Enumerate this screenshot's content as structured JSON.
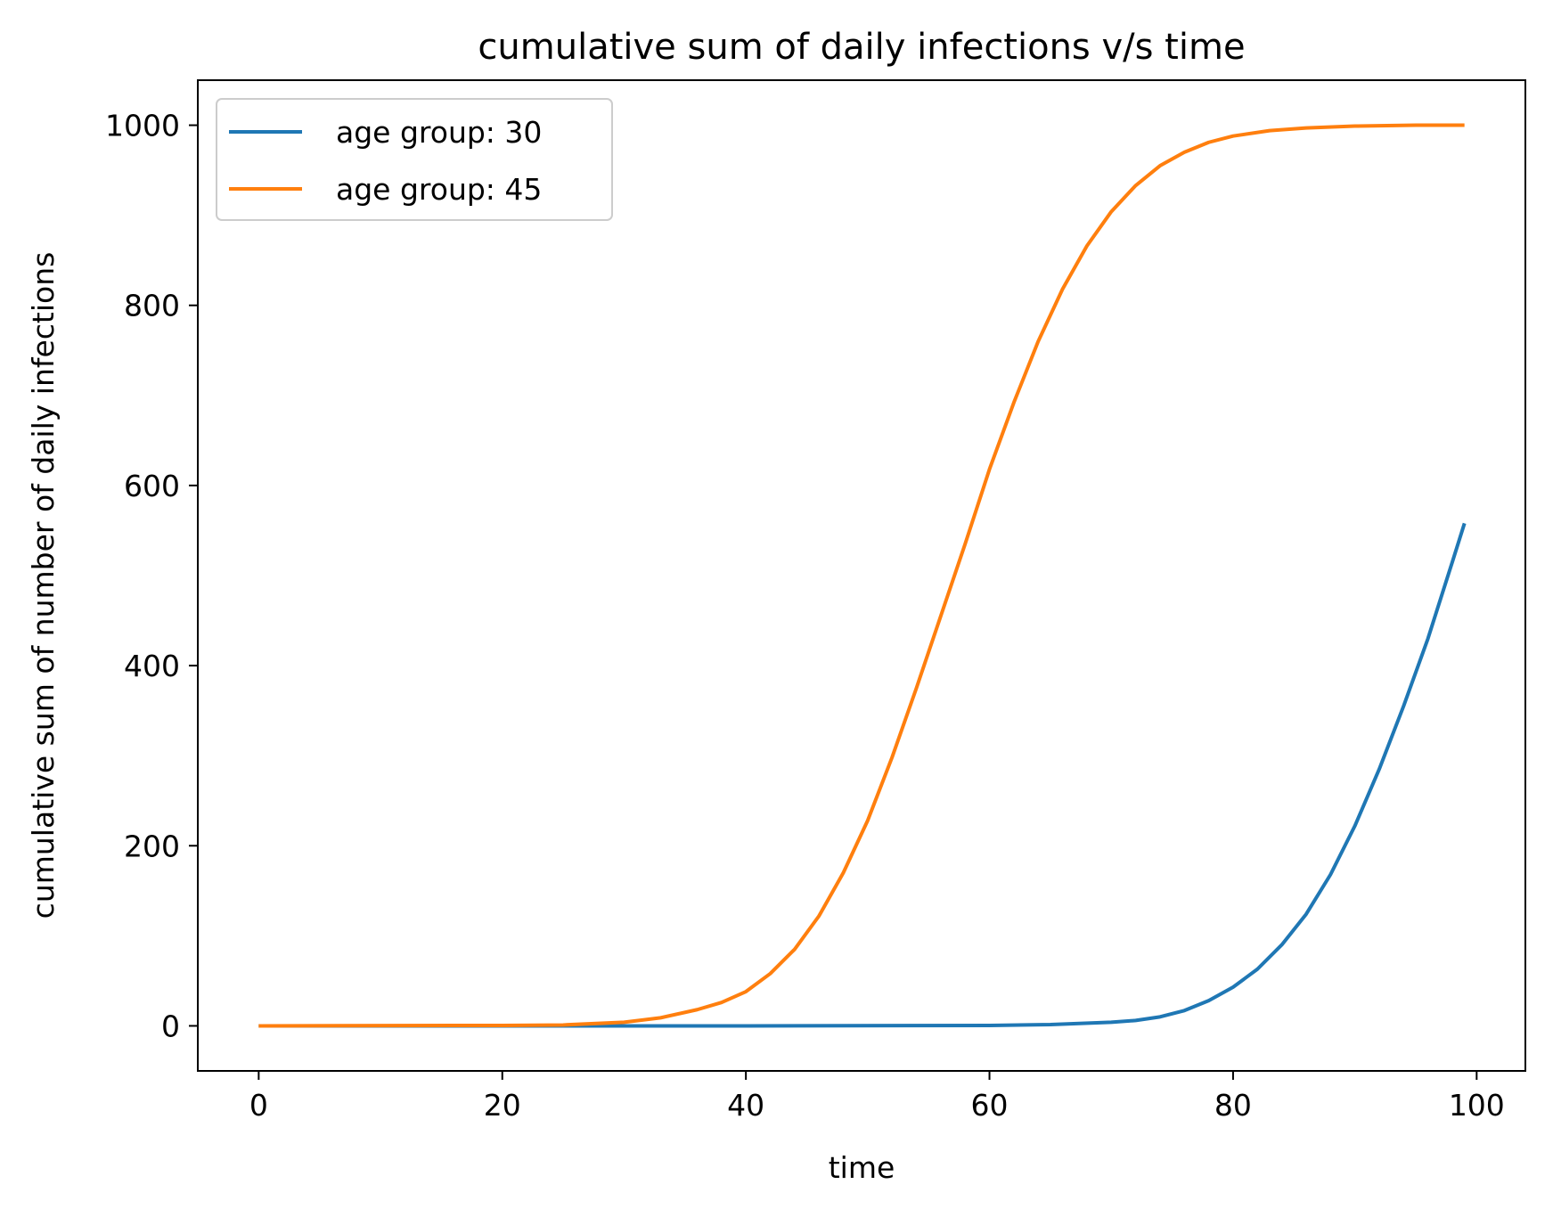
{
  "chart_data": {
    "type": "line",
    "title": "cumulative sum of daily infections v/s time",
    "xlabel": "time",
    "ylabel": "cumulative sum of number of daily infections",
    "xlim": [
      -5,
      104
    ],
    "ylim": [
      -50,
      1050
    ],
    "xticks": [
      0,
      20,
      40,
      60,
      80,
      100
    ],
    "yticks": [
      0,
      200,
      400,
      600,
      800,
      1000
    ],
    "grid": false,
    "legend_position": "top-left",
    "series": [
      {
        "name": "age group: 30",
        "color": "#1f77b4",
        "x_start": 0,
        "x_end": 99,
        "x": [
          0,
          20,
          40,
          60,
          65,
          70,
          72,
          74,
          76,
          78,
          80,
          82,
          84,
          86,
          88,
          90,
          92,
          94,
          96,
          98,
          99
        ],
        "y": [
          0,
          0,
          0,
          0.5,
          1.5,
          4,
          6,
          10,
          17,
          28,
          43,
          63,
          90,
          124,
          168,
          222,
          285,
          355,
          430,
          515,
          558
        ]
      },
      {
        "name": "age group: 45",
        "color": "#ff7f0e",
        "x_start": 0,
        "x_end": 99,
        "x": [
          0,
          20,
          25,
          30,
          33,
          36,
          38,
          40,
          42,
          44,
          46,
          48,
          50,
          52,
          54,
          56,
          58,
          60,
          62,
          64,
          66,
          68,
          70,
          72,
          74,
          76,
          78,
          80,
          83,
          86,
          90,
          95,
          99
        ],
        "y": [
          0,
          0.5,
          1,
          4,
          9,
          18,
          26,
          38,
          58,
          85,
          122,
          170,
          228,
          298,
          375,
          455,
          535,
          618,
          692,
          760,
          818,
          866,
          904,
          933,
          955,
          970,
          981,
          988,
          994,
          997,
          999,
          1000,
          1000
        ]
      }
    ]
  }
}
